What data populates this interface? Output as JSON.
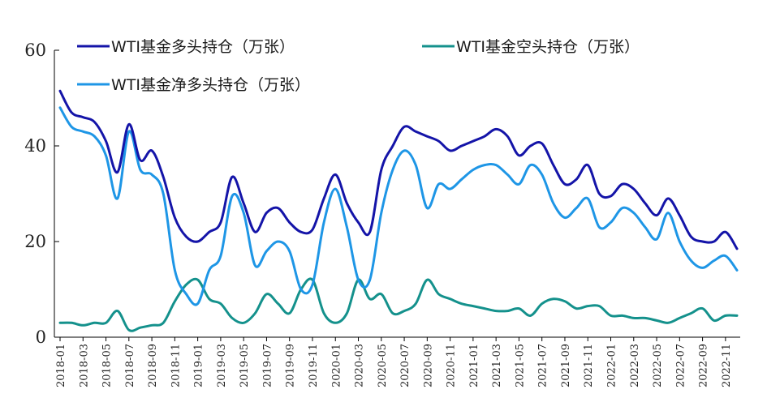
{
  "chart_data": {
    "type": "line",
    "title": "",
    "xlabel": "",
    "ylabel": "",
    "ylim": [
      0,
      60
    ],
    "yticks": [
      0,
      20,
      40,
      60
    ],
    "xlim": [
      "2018-01",
      "2022-12"
    ],
    "x_tick_labels": [
      "2018-01",
      "2018-03",
      "2018-05",
      "2018-07",
      "2018-09",
      "2018-11",
      "2019-01",
      "2019-03",
      "2019-05",
      "2019-07",
      "2019-09",
      "2019-11",
      "2020-01",
      "2020-03",
      "2020-05",
      "2020-07",
      "2020-09",
      "2020-11",
      "2021-01",
      "2021-03",
      "2021-05",
      "2021-07",
      "2021-09",
      "2021-11",
      "2022-01",
      "2022-03",
      "2022-05",
      "2022-07",
      "2022-09",
      "2022-11"
    ],
    "grid": false,
    "legend_position": "top",
    "series": [
      {
        "name": "WTI基金多头持仓（万张）",
        "color": "#1414a8",
        "x": [
          "2018-01",
          "2018-02",
          "2018-03",
          "2018-04",
          "2018-05",
          "2018-06",
          "2018-07",
          "2018-08",
          "2018-09",
          "2018-10",
          "2018-11",
          "2018-12",
          "2019-01",
          "2019-02",
          "2019-03",
          "2019-04",
          "2019-05",
          "2019-06",
          "2019-07",
          "2019-08",
          "2019-09",
          "2019-10",
          "2019-11",
          "2019-12",
          "2020-01",
          "2020-02",
          "2020-03",
          "2020-04",
          "2020-05",
          "2020-06",
          "2020-07",
          "2020-08",
          "2020-09",
          "2020-10",
          "2020-11",
          "2020-12",
          "2021-01",
          "2021-02",
          "2021-03",
          "2021-04",
          "2021-05",
          "2021-06",
          "2021-07",
          "2021-08",
          "2021-09",
          "2021-10",
          "2021-11",
          "2021-12",
          "2022-01",
          "2022-02",
          "2022-03",
          "2022-04",
          "2022-05",
          "2022-06",
          "2022-07",
          "2022-08",
          "2022-09",
          "2022-10",
          "2022-11",
          "2022-12"
        ],
        "values": [
          51.5,
          47,
          46,
          45,
          41,
          34.5,
          44.5,
          37,
          39,
          33.5,
          25,
          21,
          20,
          22,
          24,
          33.5,
          28,
          22,
          26,
          27,
          24,
          22,
          22.5,
          29,
          34,
          28,
          24,
          22,
          35,
          40,
          44,
          43,
          42,
          41,
          39,
          40,
          41,
          42,
          43.5,
          42,
          38,
          40,
          40.5,
          36,
          32,
          33,
          36,
          30,
          29.5,
          32,
          31,
          28,
          25.5,
          29,
          25.5,
          21,
          20,
          20,
          22,
          18.5
        ]
      },
      {
        "name": "WTI基金空头持仓（万张）",
        "color": "#14918c",
        "x": [
          "2018-01",
          "2018-02",
          "2018-03",
          "2018-04",
          "2018-05",
          "2018-06",
          "2018-07",
          "2018-08",
          "2018-09",
          "2018-10",
          "2018-11",
          "2018-12",
          "2019-01",
          "2019-02",
          "2019-03",
          "2019-04",
          "2019-05",
          "2019-06",
          "2019-07",
          "2019-08",
          "2019-09",
          "2019-10",
          "2019-11",
          "2019-12",
          "2020-01",
          "2020-02",
          "2020-03",
          "2020-04",
          "2020-05",
          "2020-06",
          "2020-07",
          "2020-08",
          "2020-09",
          "2020-10",
          "2020-11",
          "2020-12",
          "2021-01",
          "2021-02",
          "2021-03",
          "2021-04",
          "2021-05",
          "2021-06",
          "2021-07",
          "2021-08",
          "2021-09",
          "2021-10",
          "2021-11",
          "2021-12",
          "2022-01",
          "2022-02",
          "2022-03",
          "2022-04",
          "2022-05",
          "2022-06",
          "2022-07",
          "2022-08",
          "2022-09",
          "2022-10",
          "2022-11",
          "2022-12"
        ],
        "values": [
          3,
          3,
          2.5,
          3,
          3,
          5.5,
          1.5,
          2,
          2.5,
          3,
          7.5,
          11,
          12,
          8,
          7,
          4,
          3,
          5,
          9,
          7,
          5,
          10,
          12,
          5,
          3,
          5,
          12,
          8,
          9,
          5,
          5.5,
          7,
          12,
          9,
          8,
          7,
          6.5,
          6,
          5.5,
          5.5,
          6,
          4.5,
          7,
          8,
          7.5,
          6,
          6.5,
          6.5,
          4.5,
          4.5,
          4,
          4,
          3.5,
          3,
          4,
          5,
          6,
          3.5,
          4.5,
          4.5
        ]
      },
      {
        "name": "WTI基金净多头持仓（万张）",
        "color": "#1e96e6",
        "x": [
          "2018-01",
          "2018-02",
          "2018-03",
          "2018-04",
          "2018-05",
          "2018-06",
          "2018-07",
          "2018-08",
          "2018-09",
          "2018-10",
          "2018-11",
          "2018-12",
          "2019-01",
          "2019-02",
          "2019-03",
          "2019-04",
          "2019-05",
          "2019-06",
          "2019-07",
          "2019-08",
          "2019-09",
          "2019-10",
          "2019-11",
          "2019-12",
          "2020-01",
          "2020-02",
          "2020-03",
          "2020-04",
          "2020-05",
          "2020-06",
          "2020-07",
          "2020-08",
          "2020-09",
          "2020-10",
          "2020-11",
          "2020-12",
          "2021-01",
          "2021-02",
          "2021-03",
          "2021-04",
          "2021-05",
          "2021-06",
          "2021-07",
          "2021-08",
          "2021-09",
          "2021-10",
          "2021-11",
          "2021-12",
          "2022-01",
          "2022-02",
          "2022-03",
          "2022-04",
          "2022-05",
          "2022-06",
          "2022-07",
          "2022-08",
          "2022-09",
          "2022-10",
          "2022-11",
          "2022-12"
        ],
        "values": [
          48,
          44,
          43,
          42,
          38,
          29,
          43,
          35,
          34,
          30,
          14,
          9,
          7,
          14,
          17,
          29.5,
          26,
          15,
          18,
          20,
          18,
          10,
          11,
          24,
          31,
          23,
          12,
          12,
          26,
          35,
          39,
          36,
          27,
          32,
          31,
          33,
          35,
          36,
          36,
          34,
          32,
          36,
          34,
          28,
          25,
          27,
          29,
          23,
          24,
          27,
          26,
          23,
          20.5,
          26,
          20,
          16,
          14.5,
          16,
          17,
          14
        ]
      }
    ]
  }
}
